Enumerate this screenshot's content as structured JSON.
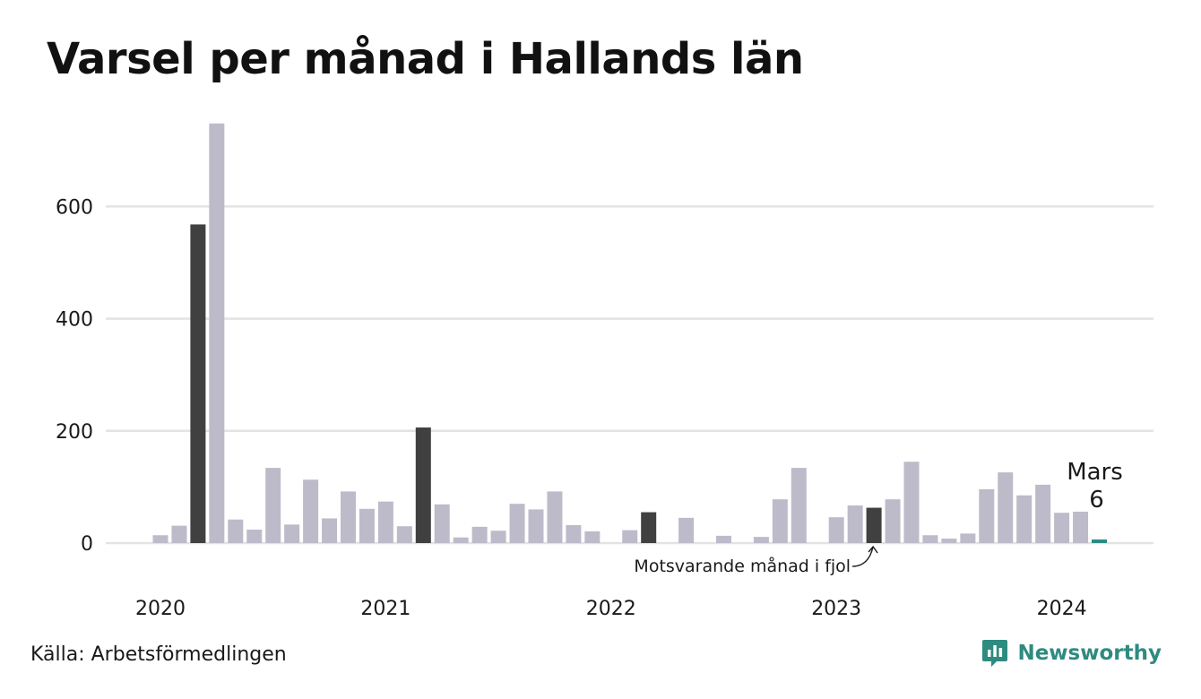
{
  "title": "Varsel per månad i Hallands län",
  "source": "Källa: Arbetsförmedlingen",
  "brand": {
    "name": "Newsworthy",
    "logo_icon": "newsworthy-logo-icon",
    "color": "#2e8b80"
  },
  "colors": {
    "default_bar": "#bdbbca",
    "highlight_bar": "#404040",
    "current_bar": "#2e8b80",
    "grid": "#e3e3e3"
  },
  "chart_data": {
    "type": "bar",
    "title": "Varsel per månad i Hallands län",
    "xlabel": "",
    "ylabel": "",
    "ylim": [
      0,
      750
    ],
    "yticks": [
      0,
      200,
      400,
      600
    ],
    "x_tick_labels": [
      "2020",
      "2021",
      "2022",
      "2023",
      "2024"
    ],
    "x_tick_indices": [
      0,
      12,
      24,
      36,
      48
    ],
    "grid": true,
    "categories": [
      "2020-01",
      "2020-02",
      "2020-03",
      "2020-04",
      "2020-05",
      "2020-06",
      "2020-07",
      "2020-08",
      "2020-09",
      "2020-10",
      "2020-11",
      "2020-12",
      "2021-01",
      "2021-02",
      "2021-03",
      "2021-04",
      "2021-05",
      "2021-06",
      "2021-07",
      "2021-08",
      "2021-09",
      "2021-10",
      "2021-11",
      "2021-12",
      "2022-01",
      "2022-02",
      "2022-03",
      "2022-04",
      "2022-05",
      "2022-06",
      "2022-07",
      "2022-08",
      "2022-09",
      "2022-10",
      "2022-11",
      "2022-12",
      "2023-01",
      "2023-02",
      "2023-03",
      "2023-04",
      "2023-05",
      "2023-06",
      "2023-07",
      "2023-08",
      "2023-09",
      "2023-10",
      "2023-11",
      "2023-12",
      "2024-01",
      "2024-02",
      "2024-03"
    ],
    "values": [
      14,
      31,
      568,
      748,
      42,
      24,
      134,
      33,
      113,
      44,
      92,
      61,
      74,
      30,
      206,
      69,
      10,
      29,
      22,
      70,
      60,
      92,
      32,
      21,
      0,
      23,
      55,
      0,
      45,
      0,
      13,
      0,
      11,
      78,
      134,
      0,
      46,
      67,
      63,
      78,
      145,
      14,
      8,
      17,
      96,
      126,
      85,
      104,
      54,
      56,
      6
    ],
    "highlighted_months": [
      "2020-03",
      "2021-03",
      "2022-03",
      "2023-03"
    ],
    "current_month": "2024-03",
    "annotations": {
      "previous_year": "Motsvarande månad i fjol",
      "last_month_name": "Mars",
      "last_value": "6"
    }
  }
}
